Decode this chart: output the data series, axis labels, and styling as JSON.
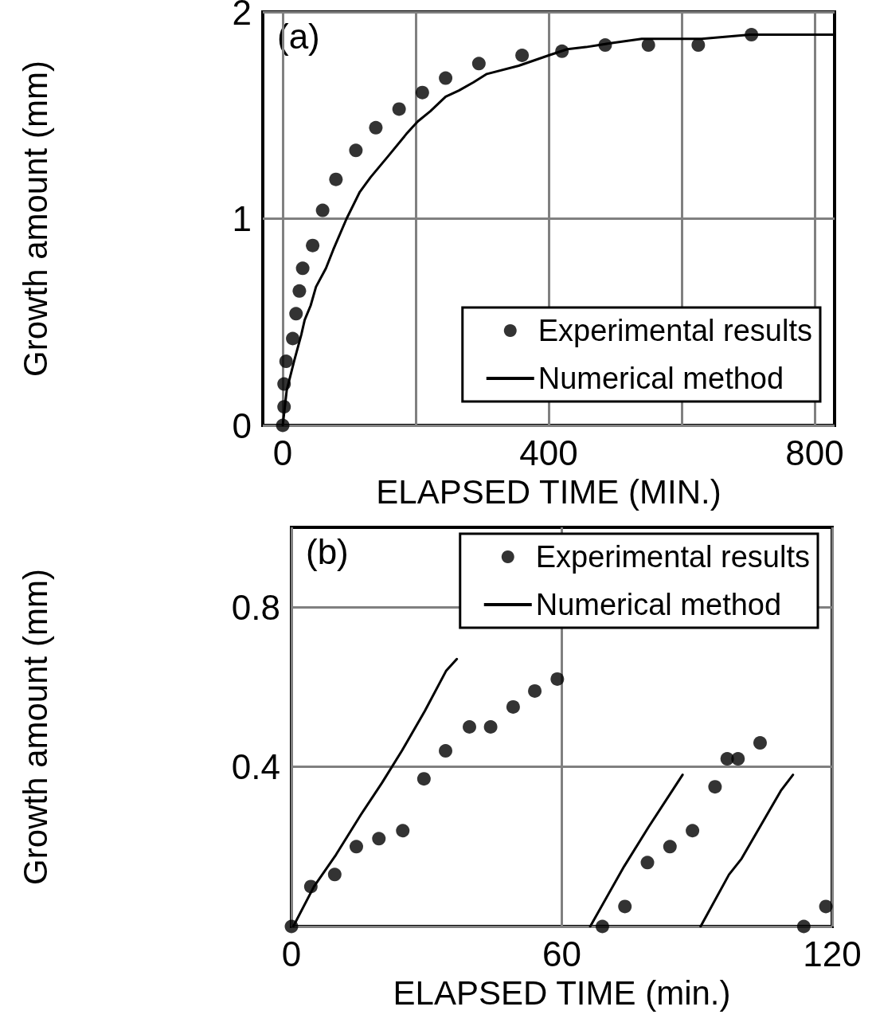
{
  "chart_data": [
    {
      "type": "scatter",
      "annotations": [
        "(a)"
      ],
      "xlabel": "ELAPSED TIME (MIN.)",
      "ylabel": "Growth amount (mm)",
      "xlim": [
        -30,
        830
      ],
      "xticks": [
        0,
        {
          "value": 200,
          "label": null
        },
        400,
        {
          "value": 600,
          "label": null
        },
        800
      ],
      "ylim": [
        0,
        2
      ],
      "yticks": [
        0,
        1,
        2
      ],
      "grid": true,
      "legend": "bottom right",
      "series": [
        {
          "name": "Experimental results",
          "type": "scatter",
          "marker": "circle",
          "color": "#000000",
          "x": [
            0,
            2,
            2,
            5,
            15,
            20,
            25,
            30,
            45,
            60,
            80,
            110,
            140,
            175,
            210,
            245,
            295,
            360,
            420,
            485,
            550,
            625,
            705
          ],
          "values": [
            0,
            0.09,
            0.2,
            0.31,
            0.42,
            0.54,
            0.65,
            0.76,
            0.87,
            1.04,
            1.19,
            1.33,
            1.44,
            1.53,
            1.61,
            1.68,
            1.75,
            1.79,
            1.81,
            1.84,
            1.84,
            1.84,
            1.89
          ]
        },
        {
          "name": "Numerical method",
          "type": "line",
          "marker": "none",
          "line_style": "solid",
          "color": "#000000",
          "x": [
            0,
            6,
            17,
            28,
            33,
            42,
            50,
            65,
            76,
            96,
            116,
            132,
            158,
            186,
            203,
            222,
            245,
            265,
            287,
            307,
            355,
            400,
            428,
            456,
            495,
            540,
            630,
            703,
            827
          ],
          "values": [
            0,
            0.17,
            0.31,
            0.44,
            0.51,
            0.58,
            0.67,
            0.76,
            0.85,
            1.0,
            1.13,
            1.2,
            1.3,
            1.41,
            1.47,
            1.52,
            1.59,
            1.62,
            1.66,
            1.7,
            1.74,
            1.79,
            1.82,
            1.83,
            1.85,
            1.87,
            1.87,
            1.89,
            1.89
          ]
        }
      ]
    },
    {
      "type": "scatter",
      "annotations": [
        "(b)"
      ],
      "xlabel": "ELAPSED TIME (min.)",
      "ylabel": "Growth amount (mm)",
      "xlim": [
        0,
        120
      ],
      "xticks": [
        0,
        60,
        120
      ],
      "ylim": [
        0,
        1
      ],
      "yticks": [
        {
          "value": 0,
          "label": null
        },
        0.4,
        0.8
      ],
      "grid": true,
      "legend": "top right",
      "series": [
        {
          "name": "Experimental results",
          "type": "scatter",
          "marker": "circle",
          "color": "#000000",
          "x": [
            0,
            4.3,
            9.6,
            14.4,
            19.4,
            24.7,
            29.4,
            34.2,
            39.5,
            44.2,
            49.2,
            54,
            59,
            69,
            74,
            79,
            84,
            89,
            94,
            96.7,
            99.1,
            104,
            113.7,
            118.6
          ],
          "values": [
            0,
            0.1,
            0.13,
            0.2,
            0.22,
            0.24,
            0.37,
            0.44,
            0.5,
            0.5,
            0.55,
            0.59,
            0.62,
            0,
            0.05,
            0.16,
            0.2,
            0.24,
            0.35,
            0.42,
            0.42,
            0.46,
            0,
            0.05
          ]
        },
        {
          "name": "Numerical method",
          "type": "line",
          "marker": "none",
          "line_style": "solid",
          "color": "#000000",
          "x": [
            0.4,
            5,
            9.9,
            15.4,
            20.1,
            24.5,
            29.6,
            34.3,
            36.7,
            50,
            66.3,
            73.8,
            79.3,
            86.8,
            88,
            90.8,
            97.1,
            99.9,
            108.6,
            111.3
          ],
          "values": [
            0,
            0.1,
            0.18,
            0.28,
            0.36,
            0.44,
            0.54,
            0.64,
            0.67,
            null,
            0,
            0.15,
            0.25,
            0.38,
            null,
            0,
            0.13,
            0.17,
            0.34,
            0.38
          ]
        }
      ]
    }
  ]
}
